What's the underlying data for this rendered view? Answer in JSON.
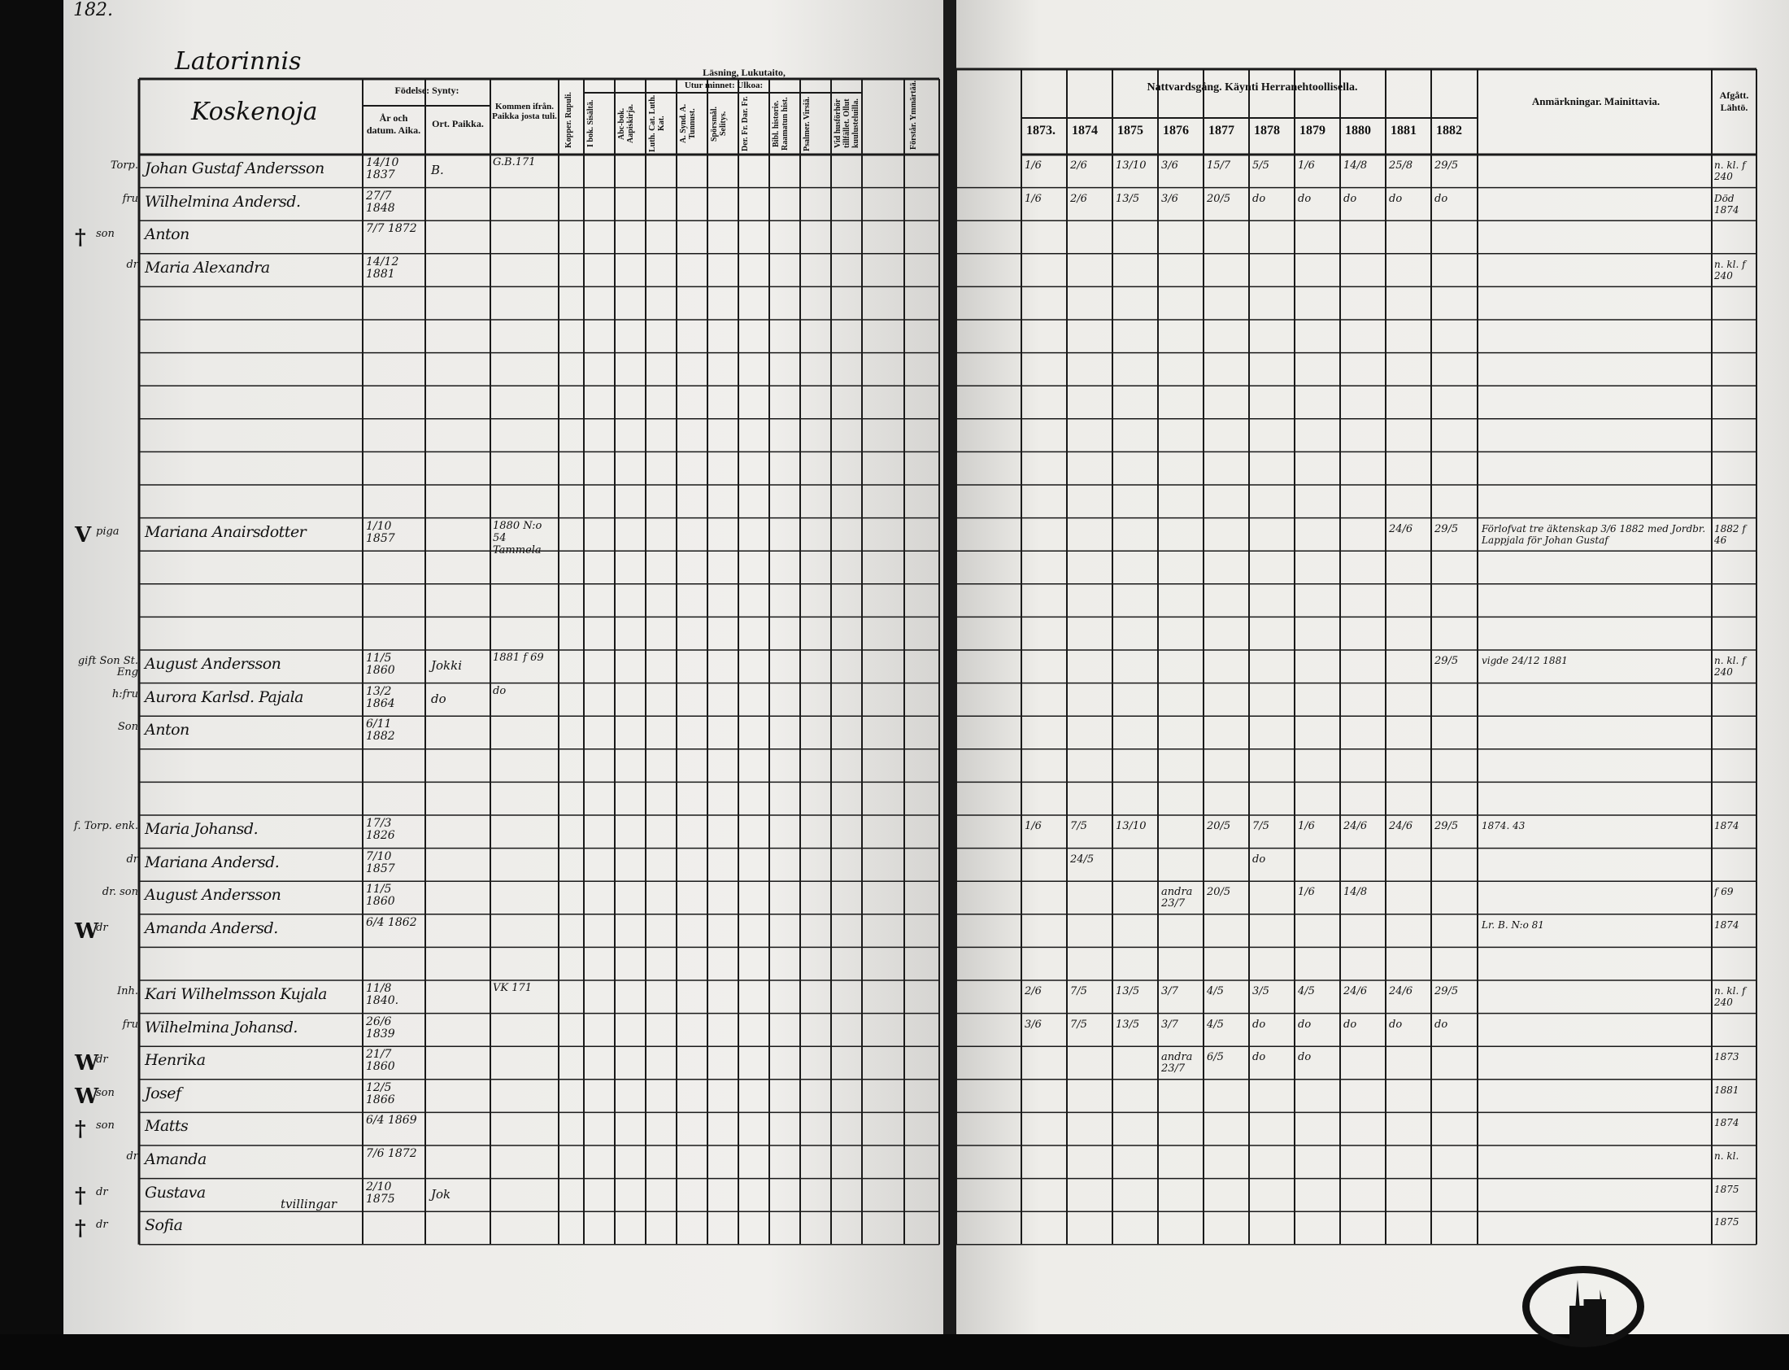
{
  "page_number": "182.",
  "village": "Latorinnis",
  "farm": "Koskenoja",
  "left_headers": {
    "birth": "Födelse: Synty:",
    "birth_date": "År och datum. Aika.",
    "birth_place": "Ort. Paikka.",
    "came_from": "Kommen ifrån. Paikka josta tuli.",
    "vaccinated": "Kopper. Rupuli.",
    "reading": "Läsning, Lukutaito,",
    "by_heart": "Utur minnet: Ulkoa:",
    "col_heads": [
      "I bok. Sisältä.",
      "Abc-bok. Aapiskirja.",
      "Luth. Cat. Luth. Kat.",
      "A. Synd. A. Tunnust.",
      "Spörsmål. Selitys.",
      "Der. Fr. Dar. Fr.",
      "Bibl. historie. Raamatun hist.",
      "Psalmer. Virsiä.",
      "Vid husförhör tillfället. Ollut kuulusteluilla."
    ],
    "extra_head": "Förstår. Ymmärtää."
  },
  "right_headers": {
    "communion": "Nattvardsgång. Käynti Herranehtoollisella.",
    "years": [
      "1873.",
      "1874",
      "1875",
      "1876",
      "1877",
      "1878",
      "1879",
      "1880",
      "1881",
      "1882"
    ],
    "remarks": "Anmärkningar. Mainittavia.",
    "departed": "Afgått. Lähtö."
  },
  "persons": [
    {
      "role": "Torp.",
      "name": "Johan Gustaf Andersson",
      "born": "14/10 1837",
      "place": "B.",
      "came_from": "G.B.171",
      "communion": [
        "1/6",
        "2/6",
        "13/10",
        "3/6",
        "15/7",
        "5/5",
        "1/6",
        "14/8",
        "25/8",
        "29/5"
      ],
      "departed": "n. kl. f 240"
    },
    {
      "role": "fru",
      "name": "Wilhelmina Andersd.",
      "born": "27/7 1848",
      "communion": [
        "1/6",
        "2/6",
        "13/5",
        "3/6",
        "20/5",
        "do",
        "do",
        "do",
        "do",
        "do"
      ],
      "departed": "Död 1874"
    },
    {
      "mark": "†",
      "role": "son",
      "name": "Anton",
      "born": "7/7 1872"
    },
    {
      "role": "dr",
      "name": "Maria Alexandra",
      "born": "14/12 1881",
      "departed": "n. kl. f 240"
    },
    {
      "mark": "V",
      "role": "piga",
      "name": "Mariana Anairsdotter",
      "born": "1/10 1857",
      "came_from": "1880 N:o 54 Tammela",
      "communion": [
        "",
        "",
        "",
        "",
        "",
        "",
        "",
        "",
        "24/6",
        "29/5"
      ],
      "remark": "Förlofvat tre äktenskap 3/6 1882 med Jordbr. Lappjala för Johan Gustaf",
      "departed": "1882 f 46"
    },
    {
      "role": "gift Son St. Eng",
      "name": "August Andersson",
      "born": "11/5 1860",
      "place": "Jokki",
      "came_from": "1881 f 69",
      "remark": "vigde 24/12 1881",
      "communion": [
        "",
        "",
        "",
        "",
        "",
        "",
        "",
        "",
        "",
        "29/5"
      ],
      "departed": "n. kl. f 240"
    },
    {
      "role": "h:fru",
      "name": "Aurora Karlsd. Pajala",
      "born": "13/2 1864",
      "place": "do",
      "came_from": "do"
    },
    {
      "role": "Son",
      "name": "Anton",
      "born": "6/11 1882"
    },
    {
      "role": "f. Torp. enk.",
      "name": "Maria Johansd.",
      "born": "17/3 1826",
      "communion": [
        "1/6",
        "7/5",
        "13/10",
        "",
        "20/5",
        "7/5",
        "1/6",
        "24/6",
        "24/6",
        "29/5"
      ],
      "remark": "1874. 43",
      "departed": "1874"
    },
    {
      "role": "dr",
      "name": "Mariana Andersd.",
      "born": "7/10 1857",
      "communion": [
        "",
        "24/5",
        "",
        "",
        "",
        "do",
        "",
        "",
        "",
        ""
      ]
    },
    {
      "role": "dr. son",
      "name": "August Andersson",
      "born": "11/5 1860",
      "communion": [
        "",
        "",
        "",
        "andra 23/7",
        "20/5",
        "",
        "1/6",
        "14/8",
        "",
        ""
      ],
      "departed": "f 69"
    },
    {
      "mark": "W",
      "role": "dr",
      "name": "Amanda Andersd.",
      "born": "6/4 1862",
      "remark": "Lr. B. N:o 81",
      "departed": "1874"
    },
    {
      "role": "Inh.",
      "name": "Kari Wilhelmsson Kujala",
      "born": "11/8 1840.",
      "came_from": "VK 171",
      "communion": [
        "2/6",
        "7/5",
        "13/5",
        "3/7",
        "4/5",
        "3/5",
        "4/5",
        "24/6",
        "24/6",
        "29/5"
      ],
      "departed": "n. kl. f 240"
    },
    {
      "role": "fru",
      "name": "Wilhelmina Johansd.",
      "born": "26/6 1839",
      "communion": [
        "3/6",
        "7/5",
        "13/5",
        "3/7",
        "4/5",
        "do",
        "do",
        "do",
        "do",
        "do"
      ]
    },
    {
      "mark": "W",
      "role": "dr",
      "name": "Henrika",
      "born": "21/7 1860",
      "communion": [
        "",
        "",
        "",
        "andra 23/7",
        "6/5",
        "do",
        "do",
        "",
        "",
        ""
      ],
      "departed": "1873"
    },
    {
      "mark": "W",
      "role": "son",
      "name": "Josef",
      "born": "12/5 1866",
      "departed": "1881"
    },
    {
      "mark": "†",
      "role": "son",
      "name": "Matts",
      "born": "6/4 1869",
      "departed": "1874"
    },
    {
      "role": "dr",
      "name": "Amanda",
      "born": "7/6 1872",
      "departed": "n. kl."
    },
    {
      "mark": "†",
      "role": "dr",
      "name": "Gustava",
      "born": "2/10 1875",
      "place": "Jok",
      "note": "tvillingar",
      "departed": "1875"
    },
    {
      "mark": "†",
      "role": "dr",
      "name": "Sofia",
      "departed": "1875"
    }
  ],
  "stamp_text": "library stamp with church"
}
